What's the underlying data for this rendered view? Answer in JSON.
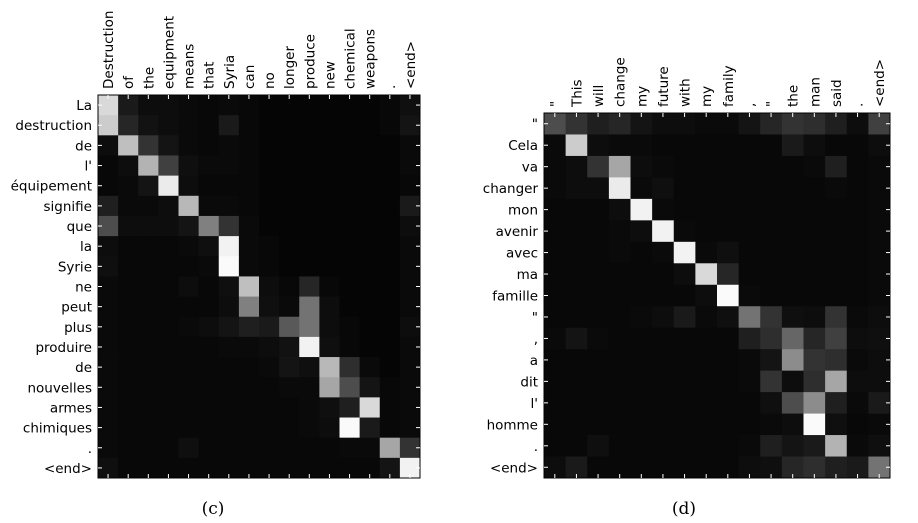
{
  "chart_data": [
    {
      "type": "heatmap",
      "caption": "(c)",
      "colormap": "grayscale (black = 0, white = 1)",
      "x_labels": [
        "Destruction",
        "of",
        "the",
        "equipment",
        "means",
        "that",
        "Syria",
        "can",
        "no",
        "longer",
        "produce",
        "new",
        "chemical",
        "weapons",
        ".",
        "<end>"
      ],
      "y_labels": [
        "La",
        "destruction",
        "de",
        "l'",
        "équipement",
        "signifie",
        "que",
        "la",
        "Syrie",
        "ne",
        "peut",
        "plus",
        "produire",
        "de",
        "nouvelles",
        "armes",
        "chimiques",
        ".",
        "<end>"
      ],
      "values": [
        [
          0.85,
          0.1,
          0.05,
          0.05,
          0.04,
          0.03,
          0.04,
          0.03,
          0.02,
          0.02,
          0.02,
          0.02,
          0.02,
          0.02,
          0.03,
          0.06
        ],
        [
          0.8,
          0.15,
          0.07,
          0.05,
          0.04,
          0.03,
          0.1,
          0.03,
          0.02,
          0.02,
          0.02,
          0.02,
          0.02,
          0.02,
          0.03,
          0.08
        ],
        [
          0.05,
          0.75,
          0.2,
          0.08,
          0.04,
          0.03,
          0.04,
          0.03,
          0.02,
          0.02,
          0.02,
          0.02,
          0.02,
          0.02,
          0.02,
          0.04
        ],
        [
          0.03,
          0.05,
          0.7,
          0.25,
          0.06,
          0.04,
          0.04,
          0.03,
          0.02,
          0.02,
          0.02,
          0.02,
          0.02,
          0.02,
          0.02,
          0.04
        ],
        [
          0.03,
          0.04,
          0.08,
          0.92,
          0.05,
          0.03,
          0.03,
          0.03,
          0.02,
          0.02,
          0.02,
          0.02,
          0.02,
          0.02,
          0.02,
          0.03
        ],
        [
          0.12,
          0.04,
          0.04,
          0.05,
          0.72,
          0.04,
          0.04,
          0.03,
          0.02,
          0.02,
          0.02,
          0.02,
          0.02,
          0.02,
          0.02,
          0.1
        ],
        [
          0.3,
          0.05,
          0.05,
          0.05,
          0.08,
          0.5,
          0.2,
          0.04,
          0.02,
          0.02,
          0.02,
          0.02,
          0.02,
          0.02,
          0.02,
          0.05
        ],
        [
          0.05,
          0.03,
          0.03,
          0.03,
          0.04,
          0.06,
          0.95,
          0.04,
          0.03,
          0.02,
          0.02,
          0.02,
          0.02,
          0.02,
          0.02,
          0.04
        ],
        [
          0.06,
          0.03,
          0.03,
          0.03,
          0.03,
          0.04,
          0.98,
          0.04,
          0.03,
          0.02,
          0.02,
          0.02,
          0.02,
          0.02,
          0.02,
          0.04
        ],
        [
          0.04,
          0.03,
          0.03,
          0.03,
          0.05,
          0.03,
          0.06,
          0.75,
          0.05,
          0.03,
          0.15,
          0.03,
          0.02,
          0.02,
          0.02,
          0.04
        ],
        [
          0.04,
          0.03,
          0.03,
          0.03,
          0.03,
          0.03,
          0.05,
          0.5,
          0.06,
          0.04,
          0.45,
          0.05,
          0.02,
          0.02,
          0.02,
          0.04
        ],
        [
          0.04,
          0.03,
          0.03,
          0.03,
          0.04,
          0.05,
          0.08,
          0.12,
          0.1,
          0.35,
          0.45,
          0.05,
          0.03,
          0.02,
          0.02,
          0.05
        ],
        [
          0.04,
          0.03,
          0.03,
          0.03,
          0.03,
          0.03,
          0.04,
          0.04,
          0.05,
          0.07,
          0.95,
          0.06,
          0.03,
          0.02,
          0.02,
          0.04
        ],
        [
          0.04,
          0.03,
          0.03,
          0.03,
          0.03,
          0.03,
          0.03,
          0.03,
          0.04,
          0.08,
          0.06,
          0.72,
          0.18,
          0.04,
          0.02,
          0.04
        ],
        [
          0.04,
          0.03,
          0.03,
          0.03,
          0.03,
          0.03,
          0.03,
          0.03,
          0.03,
          0.04,
          0.04,
          0.65,
          0.3,
          0.08,
          0.03,
          0.04
        ],
        [
          0.04,
          0.03,
          0.03,
          0.03,
          0.03,
          0.03,
          0.03,
          0.03,
          0.03,
          0.03,
          0.04,
          0.06,
          0.12,
          0.85,
          0.03,
          0.04
        ],
        [
          0.04,
          0.03,
          0.03,
          0.03,
          0.03,
          0.03,
          0.03,
          0.03,
          0.03,
          0.03,
          0.04,
          0.05,
          0.98,
          0.1,
          0.03,
          0.04
        ],
        [
          0.04,
          0.03,
          0.03,
          0.03,
          0.06,
          0.03,
          0.03,
          0.03,
          0.03,
          0.03,
          0.03,
          0.03,
          0.04,
          0.04,
          0.65,
          0.2
        ],
        [
          0.06,
          0.03,
          0.03,
          0.03,
          0.03,
          0.03,
          0.03,
          0.03,
          0.03,
          0.03,
          0.03,
          0.03,
          0.03,
          0.03,
          0.08,
          0.95
        ]
      ]
    },
    {
      "type": "heatmap",
      "caption": "(d)",
      "colormap": "grayscale (black = 0, white = 1)",
      "x_labels": [
        "\"",
        "This",
        "will",
        "change",
        "my",
        "future",
        "with",
        "my",
        "family",
        ",",
        "\"",
        "the",
        "man",
        "said",
        ".",
        "<end>"
      ],
      "y_labels": [
        "\"",
        "Cela",
        "va",
        "changer",
        "mon",
        "avenir",
        "avec",
        "ma",
        "famille",
        "\"",
        ",",
        "a",
        "dit",
        "l'",
        "homme",
        ".",
        "<end>"
      ],
      "values": [
        [
          0.3,
          0.2,
          0.12,
          0.15,
          0.08,
          0.05,
          0.05,
          0.04,
          0.04,
          0.08,
          0.15,
          0.2,
          0.18,
          0.12,
          0.05,
          0.25
        ],
        [
          0.04,
          0.8,
          0.05,
          0.04,
          0.04,
          0.03,
          0.03,
          0.03,
          0.03,
          0.03,
          0.03,
          0.1,
          0.05,
          0.03,
          0.03,
          0.05
        ],
        [
          0.04,
          0.05,
          0.2,
          0.65,
          0.05,
          0.04,
          0.03,
          0.03,
          0.03,
          0.03,
          0.03,
          0.03,
          0.04,
          0.12,
          0.03,
          0.04
        ],
        [
          0.04,
          0.05,
          0.05,
          0.92,
          0.04,
          0.06,
          0.03,
          0.03,
          0.03,
          0.03,
          0.03,
          0.03,
          0.03,
          0.04,
          0.03,
          0.04
        ],
        [
          0.03,
          0.03,
          0.03,
          0.05,
          0.95,
          0.04,
          0.03,
          0.03,
          0.03,
          0.03,
          0.03,
          0.03,
          0.03,
          0.03,
          0.03,
          0.04
        ],
        [
          0.03,
          0.03,
          0.03,
          0.04,
          0.05,
          0.95,
          0.04,
          0.03,
          0.03,
          0.03,
          0.03,
          0.03,
          0.03,
          0.03,
          0.03,
          0.04
        ],
        [
          0.03,
          0.03,
          0.03,
          0.04,
          0.03,
          0.04,
          0.95,
          0.04,
          0.06,
          0.03,
          0.03,
          0.03,
          0.03,
          0.03,
          0.03,
          0.04
        ],
        [
          0.03,
          0.03,
          0.03,
          0.03,
          0.03,
          0.03,
          0.05,
          0.85,
          0.15,
          0.03,
          0.03,
          0.03,
          0.03,
          0.03,
          0.03,
          0.04
        ],
        [
          0.03,
          0.03,
          0.03,
          0.03,
          0.03,
          0.03,
          0.03,
          0.05,
          0.98,
          0.04,
          0.03,
          0.03,
          0.03,
          0.03,
          0.03,
          0.04
        ],
        [
          0.03,
          0.03,
          0.03,
          0.03,
          0.04,
          0.05,
          0.1,
          0.04,
          0.06,
          0.45,
          0.2,
          0.06,
          0.05,
          0.2,
          0.04,
          0.05
        ],
        [
          0.04,
          0.08,
          0.04,
          0.03,
          0.03,
          0.03,
          0.03,
          0.03,
          0.03,
          0.12,
          0.18,
          0.4,
          0.15,
          0.25,
          0.05,
          0.06
        ],
        [
          0.03,
          0.03,
          0.03,
          0.03,
          0.03,
          0.03,
          0.03,
          0.03,
          0.03,
          0.04,
          0.08,
          0.55,
          0.2,
          0.18,
          0.04,
          0.05
        ],
        [
          0.03,
          0.03,
          0.03,
          0.03,
          0.03,
          0.03,
          0.03,
          0.03,
          0.03,
          0.04,
          0.2,
          0.05,
          0.18,
          0.65,
          0.05,
          0.05
        ],
        [
          0.03,
          0.03,
          0.03,
          0.03,
          0.03,
          0.03,
          0.03,
          0.03,
          0.03,
          0.03,
          0.06,
          0.3,
          0.55,
          0.12,
          0.04,
          0.1
        ],
        [
          0.03,
          0.03,
          0.03,
          0.03,
          0.03,
          0.03,
          0.03,
          0.03,
          0.03,
          0.03,
          0.04,
          0.05,
          0.98,
          0.06,
          0.03,
          0.04
        ],
        [
          0.03,
          0.03,
          0.06,
          0.03,
          0.03,
          0.03,
          0.03,
          0.03,
          0.03,
          0.04,
          0.12,
          0.08,
          0.1,
          0.7,
          0.04,
          0.06
        ],
        [
          0.05,
          0.1,
          0.03,
          0.03,
          0.03,
          0.03,
          0.03,
          0.03,
          0.03,
          0.05,
          0.06,
          0.15,
          0.18,
          0.12,
          0.1,
          0.45
        ]
      ]
    }
  ]
}
